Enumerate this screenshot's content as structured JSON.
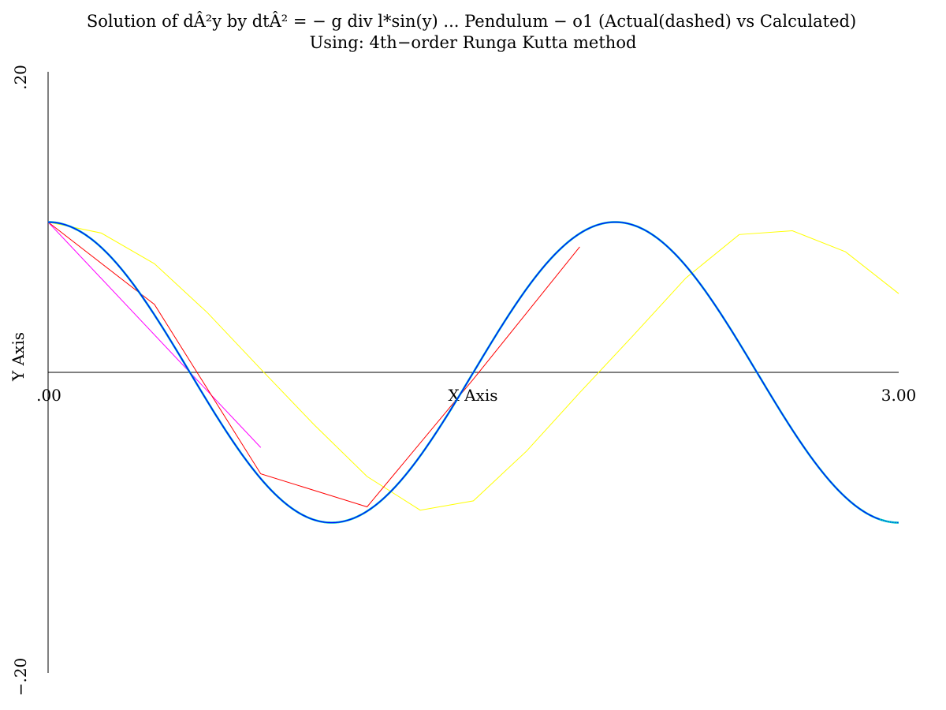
{
  "chart_data": {
    "type": "line",
    "title": "Solution of dÂ²y by dtÂ² = − g div l*sin(y) ... Pendulum − o1 (Actual(dashed) vs Calculated)",
    "subtitle": "Using: 4th−order Runga Kutta method",
    "xlabel": "X Axis",
    "ylabel": "Y Axis",
    "xlim": [
      0,
      3
    ],
    "ylim": [
      -0.2,
      0.2
    ],
    "x_tick_labels": [
      ".00",
      "3.00"
    ],
    "y_tick_labels": [
      ".20",
      "−.20"
    ],
    "grid": false,
    "legend": "none",
    "series": [
      {
        "color": "#ffff00",
        "x": [
          0,
          0.1875,
          0.375,
          0.5625,
          0.75,
          0.9375,
          1.125,
          1.3125,
          1.5,
          1.6875,
          1.875,
          2.0625,
          2.25,
          2.4375,
          2.625,
          2.8125,
          3.0
        ],
        "y": [
          0.1,
          0.0927,
          0.0723,
          0.0396,
          0.0022,
          -0.0347,
          -0.0693,
          -0.0917,
          -0.0855,
          -0.0524,
          -0.0135,
          0.0243,
          0.0629,
          0.0917,
          0.0942,
          0.0802,
          0.0524
        ]
      },
      {
        "color": "#ff00ff",
        "x": [
          0,
          0.75
        ],
        "y": [
          0.1,
          -0.05
        ]
      },
      {
        "color": "#ff0000",
        "x": [
          0,
          0.375,
          0.75,
          1.125,
          1.5,
          1.875
        ],
        "y": [
          0.1,
          0.0452,
          -0.0675,
          -0.0895,
          -0.0045,
          0.0835
        ]
      },
      {
        "color": "#00c8c8",
        "function": "0.1*cos(2*pi*x/2)",
        "x_range": [
          0,
          3
        ]
      },
      {
        "color": "#0000ff",
        "function": "0.1*cos(2*pi*x/2)",
        "x_range": [
          0,
          3
        ],
        "style": "solid-then-dotted"
      }
    ]
  }
}
